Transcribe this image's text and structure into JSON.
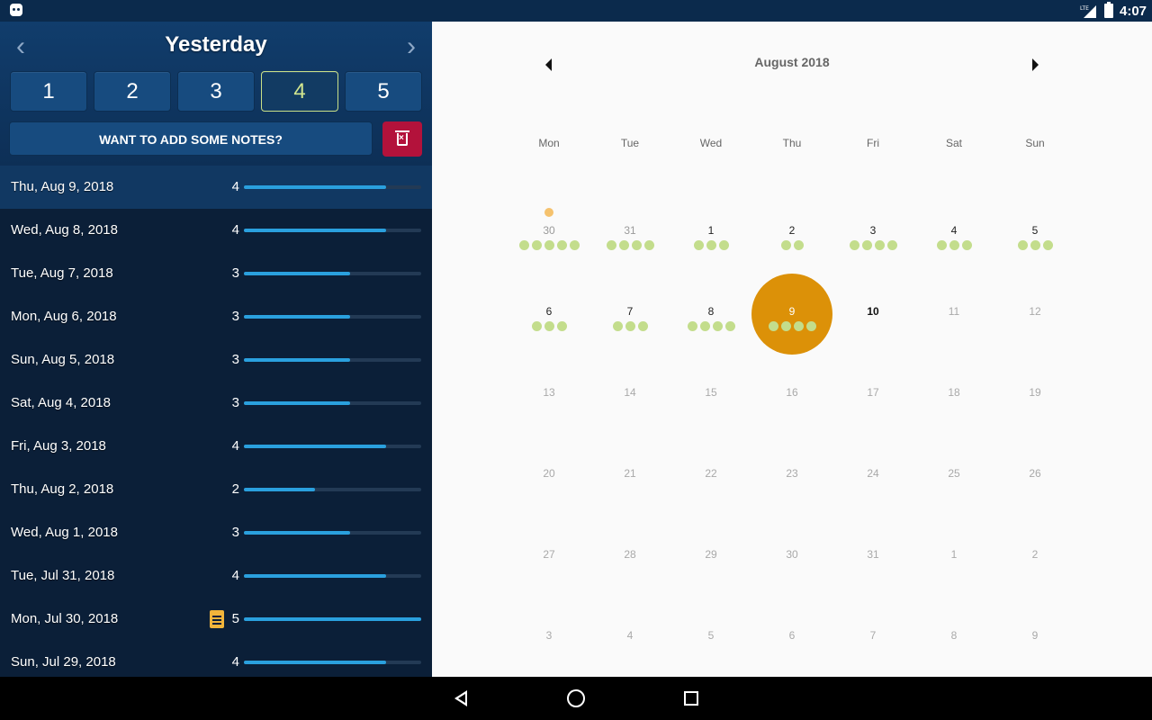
{
  "status_bar": {
    "time": "4:07",
    "network": "LTE"
  },
  "header": {
    "title": "Yesterday",
    "prev_icon": "chevron-left-icon",
    "next_icon": "chevron-right-icon",
    "ratings": [
      "1",
      "2",
      "3",
      "4",
      "5"
    ],
    "selected_rating": "4",
    "notes_label": "WANT TO ADD SOME NOTES?",
    "delete_icon": "trash-icon"
  },
  "days": [
    {
      "date": "Thu, Aug 9, 2018",
      "score": "4",
      "level": 0.8,
      "note": false,
      "active": true
    },
    {
      "date": "Wed, Aug 8, 2018",
      "score": "4",
      "level": 0.8,
      "note": false
    },
    {
      "date": "Tue, Aug 7, 2018",
      "score": "3",
      "level": 0.6,
      "note": false
    },
    {
      "date": "Mon, Aug 6, 2018",
      "score": "3",
      "level": 0.6,
      "note": false
    },
    {
      "date": "Sun, Aug 5, 2018",
      "score": "3",
      "level": 0.6,
      "note": false
    },
    {
      "date": "Sat, Aug 4, 2018",
      "score": "3",
      "level": 0.6,
      "note": false
    },
    {
      "date": "Fri, Aug 3, 2018",
      "score": "4",
      "level": 0.8,
      "note": false
    },
    {
      "date": "Thu, Aug 2, 2018",
      "score": "2",
      "level": 0.4,
      "note": false
    },
    {
      "date": "Wed, Aug 1, 2018",
      "score": "3",
      "level": 0.6,
      "note": false
    },
    {
      "date": "Tue, Jul 31, 2018",
      "score": "4",
      "level": 0.8,
      "note": false
    },
    {
      "date": "Mon, Jul 30, 2018",
      "score": "5",
      "level": 1.0,
      "note": true
    },
    {
      "date": "Sun, Jul 29, 2018",
      "score": "4",
      "level": 0.8,
      "note": false
    }
  ],
  "calendar": {
    "month_label": "August 2018",
    "weekdays": [
      "Mon",
      "Tue",
      "Wed",
      "Thu",
      "Fri",
      "Sat",
      "Sun"
    ],
    "weeks": [
      [
        {
          "n": "30",
          "kind": "other",
          "dots": 5,
          "note": true
        },
        {
          "n": "31",
          "kind": "other",
          "dots": 4
        },
        {
          "n": "1",
          "dots": 3
        },
        {
          "n": "2",
          "dots": 2
        },
        {
          "n": "3",
          "dots": 4
        },
        {
          "n": "4",
          "dots": 3
        },
        {
          "n": "5",
          "dots": 3
        }
      ],
      [
        {
          "n": "6",
          "dots": 3
        },
        {
          "n": "7",
          "dots": 3
        },
        {
          "n": "8",
          "dots": 4
        },
        {
          "n": "9",
          "dots": 4,
          "selected": true
        },
        {
          "n": "10",
          "kind": "today",
          "dots": 0
        },
        {
          "n": "11",
          "kind": "future",
          "dots": 0
        },
        {
          "n": "12",
          "kind": "future",
          "dots": 0
        }
      ],
      [
        {
          "n": "13",
          "kind": "future"
        },
        {
          "n": "14",
          "kind": "future"
        },
        {
          "n": "15",
          "kind": "future"
        },
        {
          "n": "16",
          "kind": "future"
        },
        {
          "n": "17",
          "kind": "future"
        },
        {
          "n": "18",
          "kind": "future"
        },
        {
          "n": "19",
          "kind": "future"
        }
      ],
      [
        {
          "n": "20",
          "kind": "future"
        },
        {
          "n": "21",
          "kind": "future"
        },
        {
          "n": "22",
          "kind": "future"
        },
        {
          "n": "23",
          "kind": "future"
        },
        {
          "n": "24",
          "kind": "future"
        },
        {
          "n": "25",
          "kind": "future"
        },
        {
          "n": "26",
          "kind": "future"
        }
      ],
      [
        {
          "n": "27",
          "kind": "future"
        },
        {
          "n": "28",
          "kind": "future"
        },
        {
          "n": "29",
          "kind": "future"
        },
        {
          "n": "30",
          "kind": "future"
        },
        {
          "n": "31",
          "kind": "future"
        },
        {
          "n": "1",
          "kind": "future"
        },
        {
          "n": "2",
          "kind": "future"
        }
      ],
      [
        {
          "n": "3",
          "kind": "future"
        },
        {
          "n": "4",
          "kind": "future"
        },
        {
          "n": "5",
          "kind": "future"
        },
        {
          "n": "6",
          "kind": "future"
        },
        {
          "n": "7",
          "kind": "future"
        },
        {
          "n": "8",
          "kind": "future"
        },
        {
          "n": "9",
          "kind": "future"
        }
      ]
    ]
  },
  "colors": {
    "selected_day": "#dc9108",
    "mood_dot": "#c3dd8c",
    "note_dot": "#f5c26d",
    "bar_fill": "#2aa0de",
    "delete_button": "#b3123b"
  },
  "nav": {
    "back_icon": "back-icon",
    "home_icon": "home-icon",
    "recents_icon": "recents-icon"
  }
}
